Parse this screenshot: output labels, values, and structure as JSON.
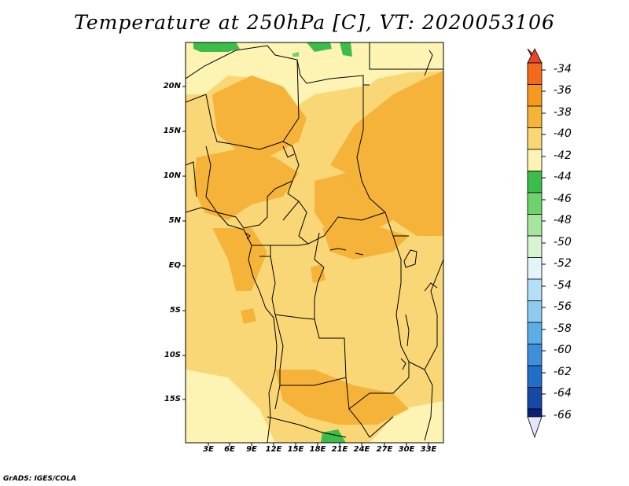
{
  "title": "Temperature at 250hPa [C], VT: 2020053106",
  "credit": "GrADS: IGES/COLA",
  "map": {
    "lat_labels": [
      "20N",
      "15N",
      "10N",
      "5N",
      "EQ",
      "5S",
      "10S",
      "15S"
    ],
    "lon_labels": [
      "3E",
      "6E",
      "9E",
      "12E",
      "15E",
      "18E",
      "21E",
      "24E",
      "27E",
      "30E",
      "33E"
    ]
  },
  "colorbar": {
    "labels": [
      "-34",
      "-36",
      "-38",
      "-40",
      "-42",
      "-44",
      "-46",
      "-48",
      "-50",
      "-52",
      "-54",
      "-56",
      "-58",
      "-60",
      "-62",
      "-64",
      "-66"
    ],
    "colors": {
      "above_-34": "#e8452a",
      "-36_-34": "#f36a1c",
      "-38_-36": "#f59a1e",
      "-40_-38": "#f6b33a",
      "-42_-40": "#f9d776",
      "-44_-42": "#fdf3b3",
      "-46_-44": "#3cbd4a",
      "-48_-46": "#6fd36d",
      "-50_-48": "#a5e69c",
      "-52_-50": "#d7f3cf",
      "-54_-52": "#e3f4fb",
      "-56_-54": "#b4dff6",
      "-58_-56": "#8dcaf0",
      "-60_-58": "#5eaee6",
      "-62_-60": "#3d8fdc",
      "-64_-62": "#1f6fc9",
      "-66_-64": "#1648a6",
      "below_-66": "#0c1f78",
      "below_arrow": "#e6e6fa"
    }
  }
}
